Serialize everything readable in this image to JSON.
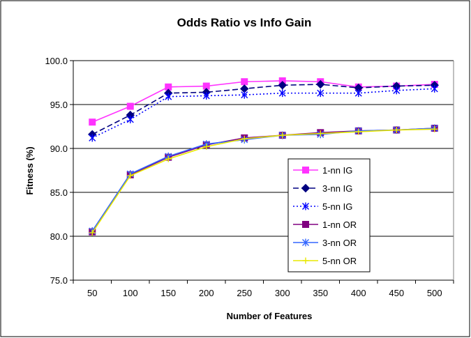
{
  "chart_data": {
    "type": "line",
    "title": "Odds Ratio vs Info Gain",
    "xlabel": "Number of Features",
    "ylabel": "Fitness (%)",
    "categories": [
      "50",
      "100",
      "150",
      "200",
      "250",
      "300",
      "350",
      "400",
      "450",
      "500"
    ],
    "ylim": [
      75.0,
      100.0
    ],
    "yticks": [
      "75.0",
      "80.0",
      "85.0",
      "90.0",
      "95.0",
      "100.0"
    ],
    "grid": "horizontal",
    "legend_position": "right",
    "series": [
      {
        "name": "1-nn IG",
        "color": "#ff33ff",
        "marker": "square",
        "dash": "solid",
        "values": [
          93.0,
          94.8,
          97.0,
          97.1,
          97.6,
          97.7,
          97.6,
          97.0,
          97.1,
          97.3
        ]
      },
      {
        "name": "3-nn IG",
        "color": "#000080",
        "marker": "diamond",
        "dash": "dashed",
        "values": [
          91.6,
          93.8,
          96.3,
          96.4,
          96.8,
          97.2,
          97.3,
          96.9,
          97.1,
          97.2
        ]
      },
      {
        "name": "5-nn IG",
        "color": "#0000ff",
        "marker": "asterisk",
        "dash": "dotted",
        "values": [
          91.2,
          93.3,
          95.9,
          96.0,
          96.1,
          96.3,
          96.3,
          96.3,
          96.6,
          96.8
        ]
      },
      {
        "name": "1-nn OR",
        "color": "#800080",
        "marker": "square",
        "dash": "solid",
        "values": [
          80.5,
          87.0,
          89.0,
          90.4,
          91.2,
          91.5,
          91.8,
          92.0,
          92.1,
          92.3
        ]
      },
      {
        "name": "3-nn OR",
        "color": "#3366ff",
        "marker": "asterisk",
        "dash": "solid",
        "values": [
          80.6,
          87.1,
          89.1,
          90.5,
          91.0,
          91.5,
          91.6,
          92.0,
          92.1,
          92.3
        ]
      },
      {
        "name": "5-nn OR",
        "color": "#e8e800",
        "marker": "plus",
        "dash": "solid",
        "values": [
          80.4,
          86.9,
          88.8,
          90.2,
          91.1,
          91.5,
          91.7,
          91.9,
          92.1,
          92.2
        ]
      }
    ]
  }
}
